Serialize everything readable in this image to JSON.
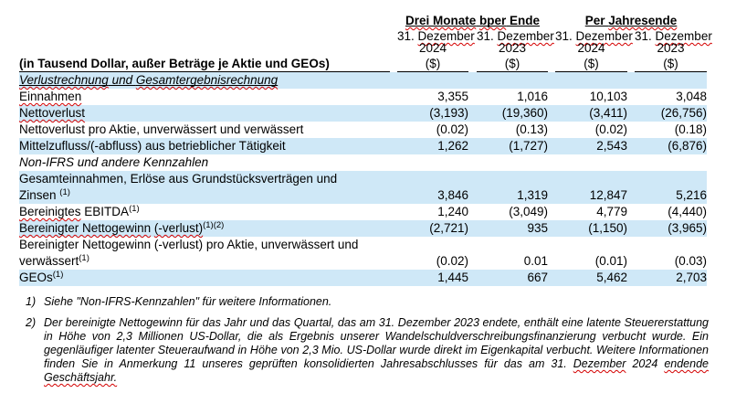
{
  "colors": {
    "row_highlight": "#cfe8f7",
    "spellcheck_underline": "#d40000",
    "text": "#000000",
    "rule": "#000000"
  },
  "table": {
    "group_headers": [
      {
        "segments": [
          {
            "t": "Drei Monate",
            "sq": true
          },
          {
            "t": " "
          },
          {
            "t": "bper",
            "sq": true
          },
          {
            "t": " Ende"
          }
        ]
      },
      {
        "segments": [
          {
            "t": "Per "
          },
          {
            "t": "Jahresende",
            "sq": true
          }
        ]
      }
    ],
    "column_headers": [
      {
        "date_segments": [
          {
            "t": "31. "
          },
          {
            "t": "Dezember",
            "sq": true
          }
        ],
        "year": "2024",
        "unit": "($)"
      },
      {
        "date_segments": [
          {
            "t": "31. "
          },
          {
            "t": "Dezember",
            "sq": true
          }
        ],
        "year": "2023",
        "unit": "($)"
      },
      {
        "date_segments": [
          {
            "t": "31. "
          },
          {
            "t": "Dezember",
            "sq": true
          }
        ],
        "year": "2024",
        "unit": "($)"
      },
      {
        "date_segments": [
          {
            "t": "31. "
          },
          {
            "t": "Dezember",
            "sq": true
          }
        ],
        "year": "2023",
        "unit": "($)"
      }
    ],
    "row_label_header": "(in Tausend Dollar, außer Beträge je Aktie und GEOs)",
    "rows": [
      {
        "style": "section-underline",
        "highlight": true,
        "lines": [
          [
            {
              "t": "Verlustrechnung",
              "sq": true
            },
            {
              "t": " und "
            },
            {
              "t": "Gesamtergebnisrechnung",
              "sq": true
            }
          ]
        ],
        "values": [
          "",
          "",
          "",
          ""
        ]
      },
      {
        "highlight": false,
        "lines": [
          [
            {
              "t": "Einnahmen",
              "sq": true
            }
          ]
        ],
        "values": [
          "3,355",
          "1,016",
          "10,103",
          "3,048"
        ]
      },
      {
        "highlight": true,
        "lines": [
          [
            {
              "t": "Nettoverlust",
              "sq": true
            }
          ]
        ],
        "values": [
          "(3,193)",
          "(19,360)",
          "(3,411)",
          "(26,756)"
        ]
      },
      {
        "highlight": false,
        "lines": [
          [
            {
              "t": "Nettoverlust pro Aktie, unverwässert und verwässert"
            }
          ]
        ],
        "values": [
          "(0.02)",
          "(0.13)",
          "(0.02)",
          "(0.18)"
        ]
      },
      {
        "highlight": true,
        "lines": [
          [
            {
              "t": "Mittelzufluss/(-abfluss) aus betrieblicher Tätigkeit"
            }
          ]
        ],
        "values": [
          "1,262",
          "(1,727)",
          "2,543",
          "(6,876)"
        ]
      },
      {
        "style": "section-italic",
        "highlight": false,
        "lines": [
          [
            {
              "t": "Non-IFRS und andere Kennzahlen"
            }
          ]
        ],
        "values": [
          "",
          "",
          "",
          ""
        ]
      },
      {
        "highlight": true,
        "lines": [
          [
            {
              "t": "Gesamteinnahmen, Erlöse aus Grundstücksverträgen und"
            }
          ],
          [
            {
              "t": "Zinsen "
            },
            {
              "t": "(1)",
              "sup": true
            }
          ]
        ],
        "values": [
          "3,846",
          "1,319",
          "12,847",
          "5,216"
        ]
      },
      {
        "highlight": false,
        "lines": [
          [
            {
              "t": "Bereinigtes",
              "sq": true
            },
            {
              "t": " EBITDA"
            },
            {
              "t": "(1)",
              "sup": true
            }
          ]
        ],
        "values": [
          "1,240",
          "(3,049)",
          "4,779",
          "(4,440)"
        ]
      },
      {
        "highlight": true,
        "lines": [
          [
            {
              "t": "Bereinigter Nettogewinn",
              "sq": true
            },
            {
              "t": " "
            },
            {
              "t": "(-verlust)",
              "sq": true
            },
            {
              "t": "(1)(2)",
              "sup": true
            }
          ]
        ],
        "values": [
          "(2,721)",
          "935",
          "(1,150)",
          "(3,965)"
        ]
      },
      {
        "highlight": false,
        "lines": [
          [
            {
              "t": "Bereinigter Nettogewinn (-verlust) pro Aktie, unverwässert und"
            }
          ],
          [
            {
              "t": "verwässert"
            },
            {
              "t": "(1)",
              "sup": true
            }
          ]
        ],
        "values": [
          "(0.02)",
          "0.01",
          "(0.01)",
          "(0.03)"
        ]
      },
      {
        "highlight": true,
        "lines": [
          [
            {
              "t": "GEOs"
            },
            {
              "t": "(1)",
              "sup": true
            }
          ]
        ],
        "values": [
          "1,445",
          "667",
          "5,462",
          "2,703"
        ]
      }
    ]
  },
  "footnotes": [
    {
      "marker": "1)",
      "justify": false,
      "segments": [
        {
          "t": "Siehe \"Non-IFRS-Kennzahlen\" für weitere Informationen."
        }
      ]
    },
    {
      "marker": "2)",
      "justify": true,
      "segments": [
        {
          "t": "Der bereinigte Nettogewinn für das Jahr und das Quartal, das am 31. Dezember 2023 endete, enthält eine latente Steuererstattung in Höhe von 2,3 Millionen US-Dollar, die als Ergebnis unserer Wandelschuldverschreibungsfinanzierung verbucht wurde. Ein gegenläufiger latenter Steueraufwand in Höhe von 2,3 Mio. US-Dollar wurde direkt im Eigenkapital verbucht. Weitere Informationen finden Sie in Anmerkung 11 unseres geprüften konsolidierten Jahresabschlusses für das am 31. "
        },
        {
          "t": "Dezember",
          "sq": true
        },
        {
          "t": " 2024 "
        },
        {
          "t": "endende",
          "sq": true
        },
        {
          "t": " "
        },
        {
          "t": "Geschäftsjahr.",
          "sq": true
        }
      ]
    }
  ]
}
